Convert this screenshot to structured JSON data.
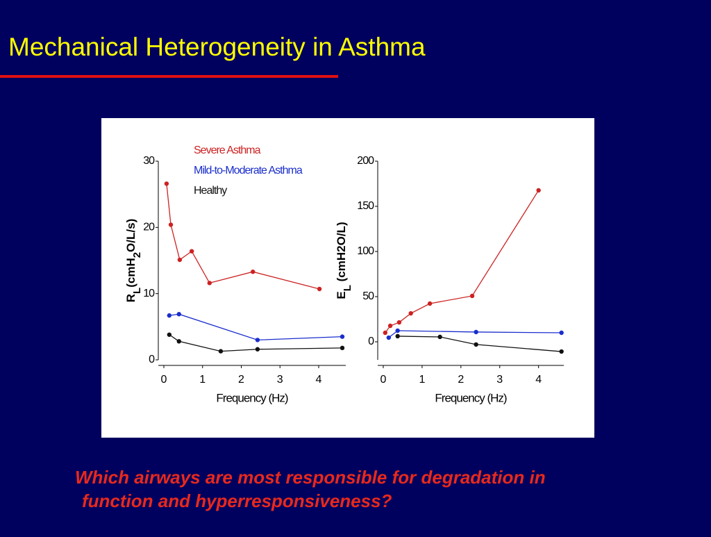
{
  "title": "Mechanical Heterogeneity in Asthma",
  "question": [
    "Which airways are most responsible for degradation in",
    "function and hyperresponsiveness?"
  ],
  "chart_data": [
    {
      "type": "line",
      "ylabel": [
        {
          "text": "R",
          "sub": false
        },
        {
          "text": "L",
          "sub": true
        },
        {
          "text": "(cmH",
          "sub": false
        },
        {
          "text": "2",
          "sub": true
        },
        {
          "text": "O/L/s)",
          "sub": false
        }
      ],
      "xlabel": "Frequency (Hz)",
      "xlim": [
        0,
        4.7
      ],
      "xticks": [
        0,
        1,
        2,
        3,
        4
      ],
      "ylim": [
        0,
        30
      ],
      "yticks": [
        0,
        10,
        20,
        30
      ],
      "legend": "top",
      "series": [
        {
          "name": "Severe Asthma",
          "color": "#cc2222",
          "x": [
            0.07,
            0.18,
            0.41,
            0.72,
            1.18,
            2.3,
            4.02
          ],
          "values": [
            26.6,
            20.4,
            15.1,
            16.4,
            11.6,
            13.3,
            10.7
          ]
        },
        {
          "name": "Mild-to-Moderate Asthma",
          "color": "#1a2ecc",
          "x": [
            0.14,
            0.39,
            2.42,
            4.61
          ],
          "values": [
            6.7,
            6.9,
            3.0,
            3.5
          ]
        },
        {
          "name": "Healthy",
          "color": "#111111",
          "x": [
            0.14,
            0.39,
            1.47,
            2.42,
            4.61
          ],
          "values": [
            3.8,
            2.8,
            1.3,
            1.6,
            1.8
          ]
        }
      ]
    },
    {
      "type": "line",
      "ylabel": [
        {
          "text": "E",
          "sub": false
        },
        {
          "text": "L",
          "sub": true
        },
        {
          "text": " (cmH2O/L)",
          "sub": false
        }
      ],
      "xlabel": "Frequency (Hz)",
      "xlim": [
        0,
        4.65
      ],
      "xticks": [
        0,
        1,
        2,
        3,
        4
      ],
      "ylim": [
        -20,
        200
      ],
      "yticks": [
        0,
        50,
        100,
        150,
        200
      ],
      "series": [
        {
          "color": "#cc2222",
          "x": [
            0.05,
            0.18,
            0.41,
            0.71,
            1.2,
            2.29,
            4.0
          ],
          "values": [
            10,
            17.7,
            21.5,
            31.5,
            42.3,
            50.8,
            167.7
          ]
        },
        {
          "color": "#1a2ecc",
          "x": [
            0.14,
            0.37,
            2.39,
            4.59
          ],
          "values": [
            4.6,
            12.3,
            10.8,
            10
          ]
        },
        {
          "color": "#111111",
          "x": [
            0.37,
            1.46,
            2.39,
            4.59
          ],
          "values": [
            6.2,
            5.4,
            -3,
            -10.8
          ]
        }
      ]
    }
  ]
}
